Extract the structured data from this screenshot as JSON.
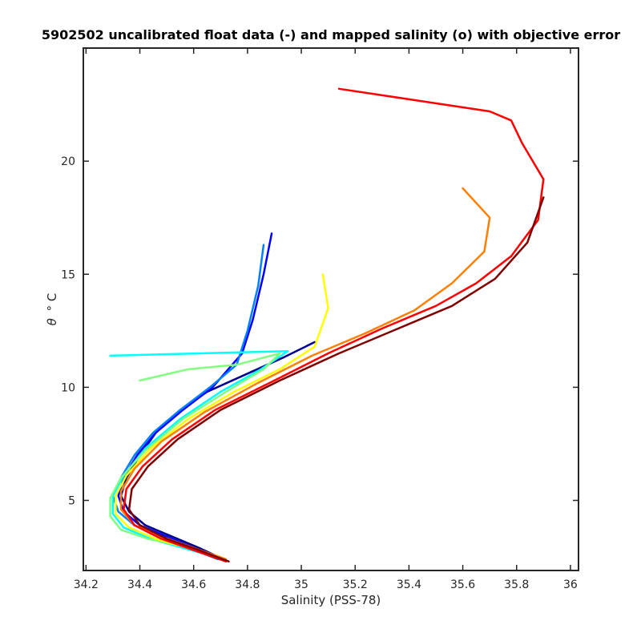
{
  "chart_data": {
    "type": "line",
    "title": "5902502 uncalibrated float data (-) and mapped salinity (o) with objective error",
    "xlabel": "Salinity (PSS-78)",
    "ylabel_symbol": "θ",
    "ylabel_unit": "° C",
    "xlim": [
      34.19,
      36.03
    ],
    "ylim": [
      1.9,
      25.0
    ],
    "xticks": [
      "34.2",
      "34.4",
      "34.6",
      "34.8",
      "35",
      "35.2",
      "35.4",
      "35.6",
      "35.8",
      "36"
    ],
    "yticks": [
      "5",
      "10",
      "15",
      "20"
    ],
    "grid": false,
    "legend": "none",
    "colormap": [
      "#00008f",
      "#0000ff",
      "#0080ff",
      "#00ffff",
      "#80ff80",
      "#ffff00",
      "#ff8000",
      "#ff0000",
      "#800000"
    ],
    "series": [
      {
        "color": "#00008f",
        "salinity": [
          34.71,
          34.62,
          34.52,
          34.42,
          34.36,
          34.33,
          34.35,
          34.4,
          34.46,
          34.55,
          34.65,
          34.78,
          34.93,
          35.05
        ],
        "theta": [
          2.4,
          2.9,
          3.4,
          3.9,
          4.5,
          5.2,
          6.0,
          7.0,
          8.0,
          9.0,
          9.8,
          10.5,
          11.3,
          12.0
        ]
      },
      {
        "color": "#0000ff",
        "salinity": [
          34.7,
          34.6,
          34.5,
          34.4,
          34.34,
          34.32,
          34.34,
          34.39,
          34.46,
          34.56,
          34.67,
          34.78,
          34.82,
          34.86,
          34.89
        ],
        "theta": [
          2.4,
          2.9,
          3.4,
          3.9,
          4.5,
          5.2,
          6.0,
          7.0,
          8.0,
          9.0,
          10.0,
          11.5,
          13.0,
          15.0,
          16.8
        ]
      },
      {
        "color": "#0080ff",
        "salinity": [
          34.69,
          34.58,
          34.48,
          34.38,
          34.32,
          34.3,
          34.33,
          34.38,
          34.45,
          34.55,
          34.66,
          34.76,
          34.8,
          34.84,
          34.86
        ],
        "theta": [
          2.4,
          2.9,
          3.4,
          3.9,
          4.5,
          5.2,
          6.0,
          7.0,
          8.0,
          9.0,
          10.0,
          11.0,
          12.5,
          14.5,
          16.3
        ]
      },
      {
        "color": "#00ffff",
        "salinity": [
          34.68,
          34.56,
          34.44,
          34.34,
          34.3,
          34.3,
          34.34,
          34.42,
          34.55,
          34.7,
          34.85,
          34.95,
          34.29
        ],
        "theta": [
          2.5,
          2.9,
          3.3,
          3.8,
          4.4,
          5.2,
          6.1,
          7.3,
          8.6,
          9.8,
          10.8,
          11.6,
          11.4
        ]
      },
      {
        "color": "#80ff80",
        "salinity": [
          34.67,
          34.55,
          34.43,
          34.33,
          34.29,
          34.29,
          34.33,
          34.42,
          34.56,
          34.72,
          34.86,
          34.92,
          34.76,
          34.58,
          34.4
        ],
        "theta": [
          2.6,
          3.0,
          3.3,
          3.7,
          4.3,
          5.1,
          6.0,
          7.2,
          8.6,
          9.8,
          10.8,
          11.5,
          11.0,
          10.8,
          10.3
        ]
      },
      {
        "color": "#ffff00",
        "salinity": [
          34.7,
          34.58,
          34.46,
          34.36,
          34.31,
          34.31,
          34.35,
          34.44,
          34.58,
          34.75,
          34.92,
          35.05,
          35.1,
          35.08
        ],
        "theta": [
          2.5,
          2.9,
          3.3,
          3.8,
          4.4,
          5.2,
          6.1,
          7.3,
          8.6,
          9.8,
          10.8,
          11.8,
          13.5,
          15.0
        ]
      },
      {
        "color": "#ff8000",
        "salinity": [
          34.72,
          34.6,
          34.48,
          34.38,
          34.33,
          34.33,
          34.38,
          34.48,
          34.64,
          34.84,
          35.04,
          35.24,
          35.42,
          35.56,
          35.68,
          35.7,
          35.6
        ],
        "theta": [
          2.4,
          2.9,
          3.4,
          3.9,
          4.6,
          5.4,
          6.4,
          7.6,
          8.9,
          10.2,
          11.4,
          12.4,
          13.4,
          14.6,
          16.0,
          17.5,
          18.8
        ]
      },
      {
        "color": "#ff0000",
        "salinity": [
          34.72,
          34.6,
          34.48,
          34.38,
          34.34,
          34.35,
          34.41,
          34.52,
          34.68,
          34.9,
          35.1,
          35.3,
          35.5,
          35.65,
          35.78,
          35.88,
          35.9,
          35.82,
          35.78,
          35.7,
          35.14
        ],
        "theta": [
          2.3,
          2.8,
          3.3,
          3.9,
          4.6,
          5.5,
          6.5,
          7.7,
          9.0,
          10.3,
          11.5,
          12.6,
          13.6,
          14.6,
          15.8,
          17.4,
          19.2,
          20.8,
          21.8,
          22.2,
          23.2
        ]
      },
      {
        "color": "#800000",
        "salinity": [
          34.73,
          34.62,
          34.5,
          34.4,
          34.36,
          34.37,
          34.43,
          34.54,
          34.7,
          34.92,
          35.14,
          35.36,
          35.56,
          35.72,
          35.84,
          35.9
        ],
        "theta": [
          2.3,
          2.8,
          3.3,
          3.9,
          4.6,
          5.5,
          6.5,
          7.7,
          9.0,
          10.3,
          11.5,
          12.6,
          13.6,
          14.8,
          16.4,
          18.4
        ]
      }
    ]
  }
}
